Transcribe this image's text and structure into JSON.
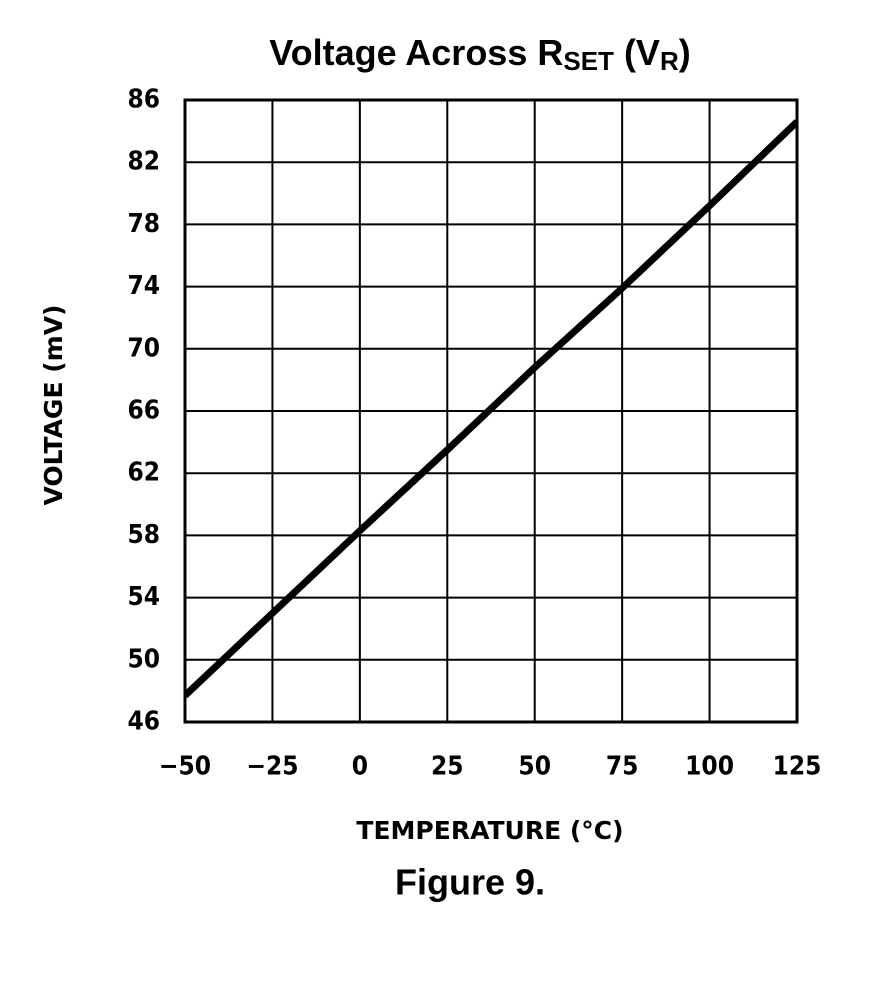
{
  "chart_data": {
    "type": "line",
    "title": [
      "Voltage Across R",
      "SET",
      " (V",
      "R",
      ")"
    ],
    "caption": "Figure 9.",
    "x_label": "TEMPERATURE (°C)",
    "y_label": "VOLTAGE (mV)",
    "x": [
      -50,
      0,
      25,
      50,
      75,
      100,
      125
    ],
    "series": [
      {
        "color": "#000000",
        "values": [
          47.7,
          58.3,
          63.5,
          68.8,
          73.9,
          79.2,
          84.6
        ]
      }
    ],
    "xlim": [
      -50,
      125
    ],
    "xticks": [
      {
        "value": -50,
        "label": "−50"
      },
      {
        "value": -25,
        "label": "−25"
      },
      0,
      25,
      50,
      75,
      100,
      125
    ],
    "ylim": [
      46,
      86
    ],
    "yticks": [
      46,
      50,
      54,
      58,
      62,
      66,
      70,
      74,
      78,
      82,
      86
    ],
    "grid": true
  }
}
